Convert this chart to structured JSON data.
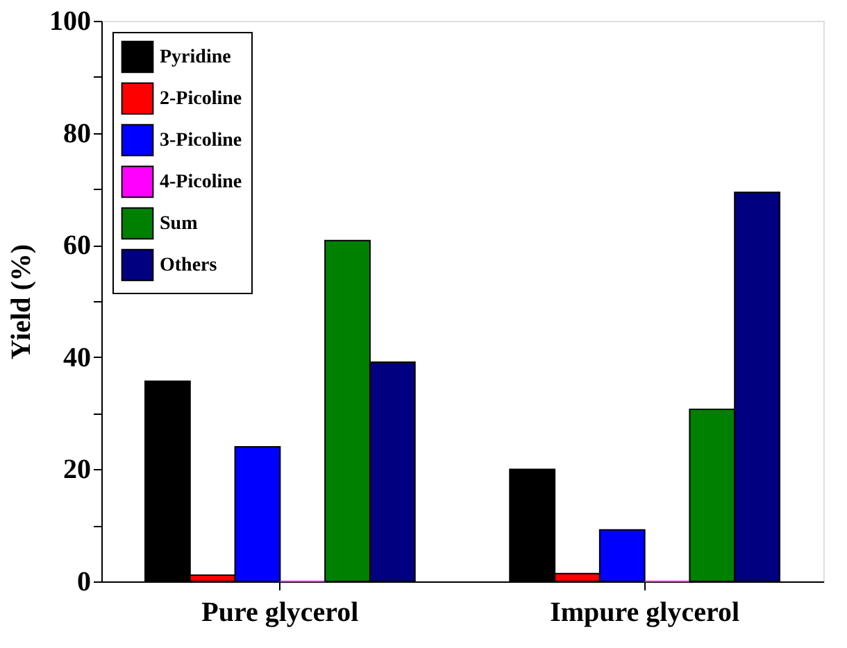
{
  "chart_data": {
    "type": "bar",
    "ylabel": "Yield (%)",
    "categories": [
      "Pure glycerol",
      "Impure glycerol"
    ],
    "series": [
      {
        "name": "Pyridine",
        "color": "#000000",
        "values": [
          35.7,
          20.0
        ]
      },
      {
        "name": "2-Picoline",
        "color": "#ff0000",
        "values": [
          1.1,
          1.4
        ]
      },
      {
        "name": "3-Picoline",
        "color": "#0000ff",
        "values": [
          24.0,
          9.2
        ]
      },
      {
        "name": "4-Picoline",
        "color": "#ff00ff",
        "values": [
          0,
          0
        ]
      },
      {
        "name": "Sum",
        "color": "#008000",
        "values": [
          60.8,
          30.7
        ]
      },
      {
        "name": "Others",
        "color": "#000080",
        "values": [
          39.1,
          69.4
        ]
      }
    ],
    "ylim": [
      0,
      100
    ],
    "yticks": [
      0,
      {
        "value": 10,
        "label": null
      },
      20,
      {
        "value": 30,
        "label": null
      },
      40,
      {
        "value": 50,
        "label": null
      },
      60,
      {
        "value": 70,
        "label": null
      },
      80,
      {
        "value": 90,
        "label": null
      },
      100
    ],
    "grid": false,
    "legend": "top left"
  }
}
